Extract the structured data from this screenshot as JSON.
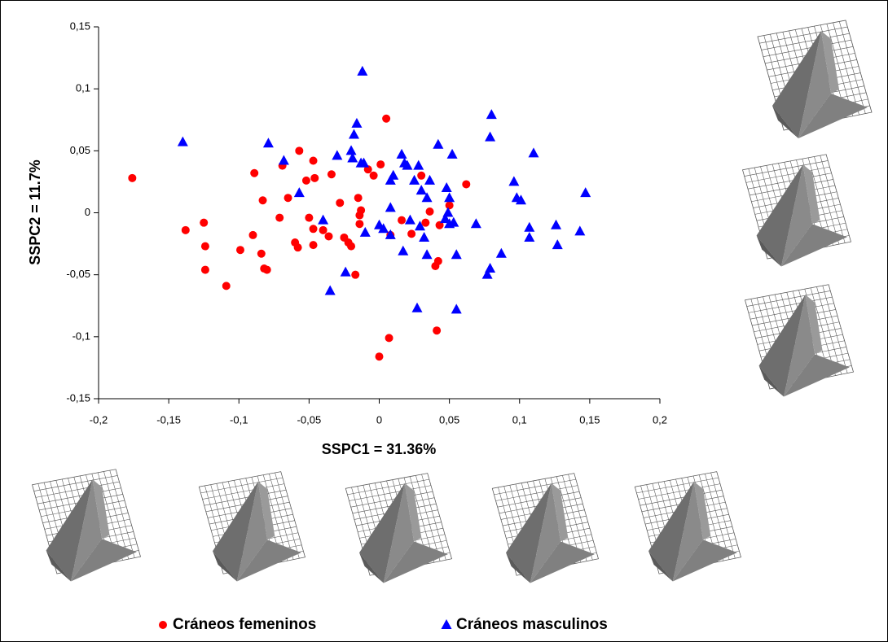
{
  "chart_data": {
    "type": "scatter",
    "x_label": "SSPC1 = 31.36%",
    "y_label": "SSPC2 = 11.7%",
    "xlim": [
      -0.2,
      0.2
    ],
    "xticks": [
      {
        "value": -0.2,
        "label": "-0,2"
      },
      {
        "value": -0.15,
        "label": "-0,15"
      },
      {
        "value": -0.1,
        "label": "-0,1"
      },
      {
        "value": -0.05,
        "label": "-0,05"
      },
      0,
      {
        "value": 0.05,
        "label": "0,05"
      },
      {
        "value": 0.1,
        "label": "0,1"
      },
      {
        "value": 0.15,
        "label": "0,15"
      },
      {
        "value": 0.2,
        "label": "0,2"
      }
    ],
    "ylim": [
      -0.15,
      0.15
    ],
    "yticks": [
      {
        "value": -0.15,
        "label": "-0,15"
      },
      {
        "value": -0.1,
        "label": "-0,1"
      },
      {
        "value": -0.05,
        "label": "-0,05"
      },
      0,
      {
        "value": 0.05,
        "label": "0,05"
      },
      {
        "value": 0.1,
        "label": "0,1"
      },
      {
        "value": 0.15,
        "label": "0,15"
      }
    ],
    "series": [
      {
        "name": "Cráneos femeninos",
        "color": "#ff0000",
        "marker": "circle",
        "x": [
          -0.176,
          -0.125,
          -0.138,
          -0.124,
          -0.124,
          -0.109,
          -0.099,
          -0.09,
          -0.084,
          -0.082,
          -0.08,
          -0.089,
          -0.083,
          -0.071,
          -0.069,
          -0.065,
          -0.06,
          -0.058,
          -0.057,
          -0.052,
          -0.047,
          -0.046,
          -0.05,
          -0.047,
          -0.047,
          -0.04,
          -0.034,
          -0.036,
          -0.028,
          -0.025,
          -0.022,
          -0.02,
          -0.017,
          -0.015,
          -0.013,
          -0.014,
          -0.014,
          -0.008,
          -0.004,
          0.001,
          0.005,
          0.008,
          0.0,
          0.007,
          0.016,
          0.023,
          0.03,
          0.033,
          0.036,
          0.04,
          0.042,
          0.043,
          0.05,
          0.041,
          0.062
        ],
        "values": [
          0.028,
          -0.008,
          -0.014,
          -0.027,
          -0.046,
          -0.059,
          -0.03,
          -0.018,
          -0.033,
          -0.045,
          -0.046,
          0.032,
          0.01,
          -0.004,
          0.038,
          0.012,
          -0.024,
          -0.028,
          0.05,
          0.026,
          0.042,
          0.028,
          -0.004,
          -0.013,
          -0.026,
          -0.014,
          0.031,
          -0.019,
          0.008,
          -0.02,
          -0.024,
          -0.027,
          -0.05,
          0.012,
          0.002,
          -0.002,
          -0.009,
          0.035,
          0.03,
          0.039,
          0.076,
          -0.018,
          -0.116,
          -0.101,
          -0.006,
          -0.017,
          0.03,
          -0.008,
          0.001,
          -0.043,
          -0.039,
          -0.01,
          0.006,
          -0.095,
          0.023
        ]
      },
      {
        "name": "Cráneos masculinos",
        "color": "#0000ff",
        "marker": "triangle",
        "x": [
          -0.14,
          -0.079,
          -0.068,
          -0.057,
          -0.04,
          -0.035,
          -0.03,
          -0.024,
          -0.02,
          -0.018,
          -0.016,
          -0.012,
          -0.01,
          -0.013,
          -0.019,
          -0.011,
          0.0,
          0.003,
          0.008,
          0.008,
          0.01,
          0.008,
          0.016,
          0.017,
          0.018,
          0.02,
          0.022,
          0.025,
          0.028,
          0.027,
          0.029,
          0.03,
          0.032,
          0.034,
          0.036,
          0.034,
          0.042,
          0.047,
          0.048,
          0.049,
          0.05,
          0.05,
          0.052,
          0.053,
          0.055,
          0.055,
          0.069,
          0.077,
          0.079,
          0.079,
          0.08,
          0.087,
          0.096,
          0.098,
          0.101,
          0.107,
          0.107,
          0.11,
          0.126,
          0.127,
          0.143,
          0.147
        ],
        "values": [
          0.057,
          0.056,
          0.042,
          0.016,
          -0.006,
          -0.063,
          0.046,
          -0.048,
          0.05,
          0.063,
          0.072,
          0.114,
          -0.016,
          0.04,
          0.044,
          0.04,
          -0.01,
          -0.013,
          -0.018,
          0.026,
          0.03,
          0.004,
          0.047,
          -0.031,
          0.04,
          0.038,
          -0.006,
          0.026,
          0.038,
          -0.077,
          -0.011,
          0.018,
          -0.02,
          -0.034,
          0.026,
          0.012,
          0.055,
          -0.005,
          0.02,
          0.0,
          -0.009,
          0.012,
          0.047,
          -0.008,
          -0.078,
          -0.034,
          -0.009,
          -0.05,
          -0.045,
          0.061,
          0.079,
          -0.033,
          0.025,
          0.012,
          0.01,
          -0.012,
          -0.02,
          0.048,
          -0.01,
          -0.026,
          -0.015,
          0.016
        ]
      }
    ]
  }
}
